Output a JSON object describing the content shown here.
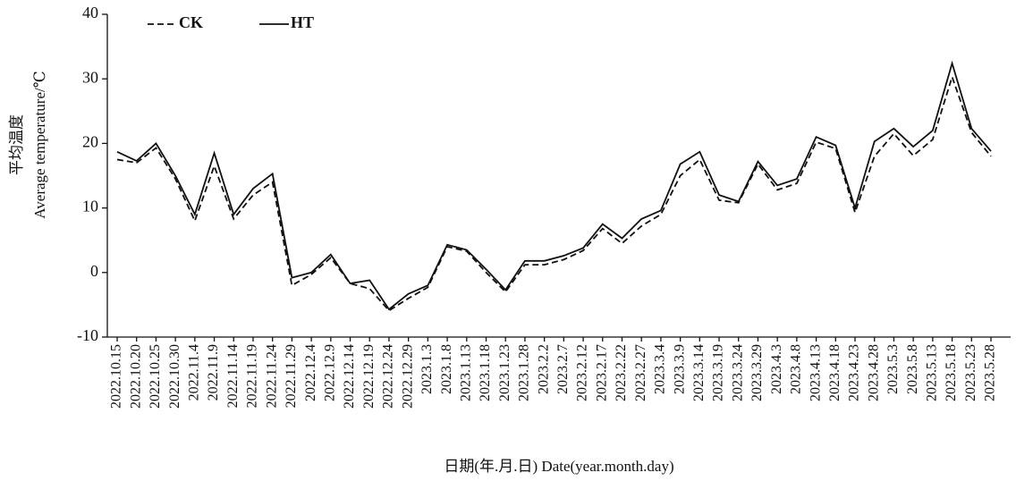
{
  "chart_data": {
    "type": "line",
    "ylabel": [
      "平均温度",
      "Average temperature/℃"
    ],
    "xlabel": "日期(年.月.日) Date(year.month.day)",
    "categories": [
      "2022.10.15",
      "2022.10.20",
      "2022.10.25",
      "2022.10.30",
      "2022.11.4",
      "2022.11.9",
      "2022.11.14",
      "2022.11.19",
      "2022.11.24",
      "2022.11.29",
      "2022.12.4",
      "2022.12.9",
      "2022.12.14",
      "2022.12.19",
      "2022.12.24",
      "2022.12.29",
      "2023.1.3",
      "2023.1.8",
      "2023.1.13",
      "2023.1.18",
      "2023.1.23",
      "2023.1.28",
      "2023.2.2",
      "2023.2.7",
      "2023.2.12",
      "2023.2.17",
      "2023.2.22",
      "2023.2.27",
      "2023.3.4",
      "2023.3.9",
      "2023.3.14",
      "2023.3.19",
      "2023.3.24",
      "2023.3.29",
      "2023.4.3",
      "2023.4.8",
      "2023.4.13",
      "2023.4.18",
      "2023.4.23",
      "2023.4.28",
      "2023.5.3",
      "2023.5.8",
      "2023.5.13",
      "2023.5.18",
      "2023.5.23",
      "2023.5.28"
    ],
    "series": [
      {
        "name": "CK",
        "color": "#111111",
        "linestyle": "dashed",
        "values": [
          17.5,
          17,
          19.3,
          14.5,
          8,
          16.5,
          8.3,
          12,
          14,
          -2,
          -0.3,
          2.3,
          -1.7,
          -2.5,
          -5.9,
          -4,
          -2.3,
          4,
          3.3,
          0,
          -3,
          1.2,
          1.2,
          2,
          3.4,
          6.8,
          4.5,
          7.2,
          9,
          15,
          17.5,
          11.2,
          10.8,
          16.8,
          12.8,
          13.8,
          20.2,
          19.2,
          9.3,
          18,
          21.5,
          18.1,
          20.6,
          30.3,
          21.7,
          18
        ]
      },
      {
        "name": "HT",
        "color": "#111111",
        "linestyle": "solid",
        "values": [
          18.7,
          17.3,
          20,
          15,
          9,
          18.5,
          9,
          13,
          15.3,
          -0.8,
          0,
          2.8,
          -1.7,
          -1.2,
          -5.7,
          -3.3,
          -2,
          4.3,
          3.5,
          0.5,
          -2.7,
          1.8,
          1.8,
          2.6,
          3.8,
          7.5,
          5.3,
          8.3,
          9.6,
          16.8,
          18.7,
          12,
          11,
          17.2,
          13.5,
          14.5,
          21,
          19.7,
          10,
          20.3,
          22.3,
          19.5,
          22,
          32.4,
          22.3,
          18.8
        ]
      }
    ],
    "ylim": [
      -10,
      40
    ],
    "yticks": [
      -10,
      0,
      10,
      20,
      30,
      40
    ],
    "grid": false
  }
}
